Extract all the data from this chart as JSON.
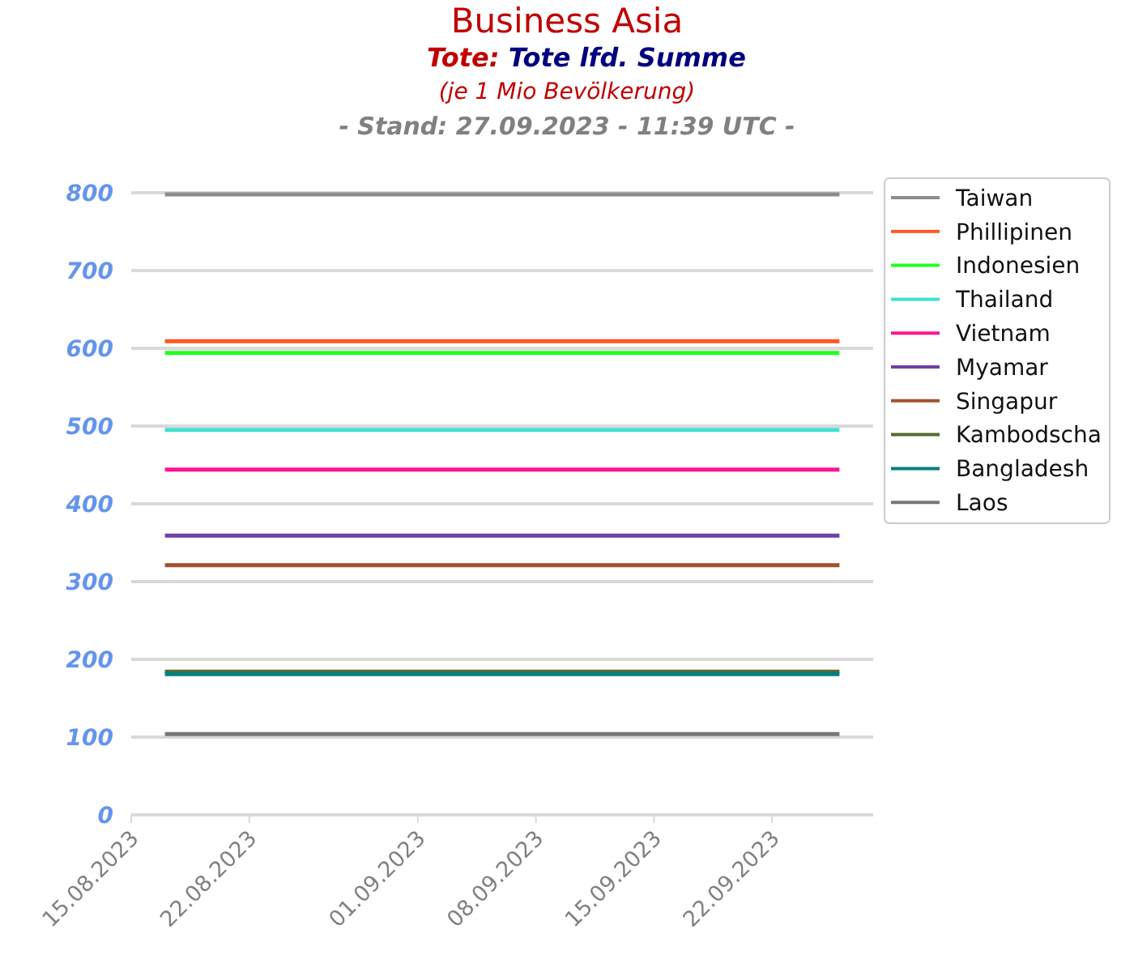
{
  "chart_data": {
    "type": "line",
    "title": "Business Asia",
    "subtitle": "Tote: Tote lfd. Summe",
    "annotations": [
      "(je 1 Mio Bevölkerung)",
      "- Stand: 27.09.2023 - 11:39 UTC -"
    ],
    "x": [
      "2023-08-17",
      "2023-09-26"
    ],
    "xlim": [
      "2023-08-15",
      "2023-09-28"
    ],
    "xticks": [
      {
        "value": "2023-08-15",
        "label": "15.08.2023"
      },
      {
        "value": "2023-08-22",
        "label": "22.08.2023"
      },
      {
        "value": "2023-09-01",
        "label": "01.09.2023"
      },
      {
        "value": "2023-09-08",
        "label": "08.09.2023"
      },
      {
        "value": "2023-09-15",
        "label": "15.09.2023"
      },
      {
        "value": "2023-09-22",
        "label": "22.09.2023"
      }
    ],
    "ylim": [
      0,
      800
    ],
    "yticks": [
      0,
      100,
      200,
      300,
      400,
      500,
      600,
      700,
      800
    ],
    "grid": "y",
    "legend": "top right",
    "marker": "none",
    "line_style": "solid",
    "series": [
      {
        "name": "Taiwan",
        "color": "#8c8c8c",
        "values": [
          798,
          798
        ]
      },
      {
        "name": "Phillipinen",
        "color": "#ff5722",
        "values": [
          609,
          609
        ]
      },
      {
        "name": "Indonesien",
        "color": "#22ff22",
        "values": [
          594,
          594
        ]
      },
      {
        "name": "Thailand",
        "color": "#40e0d0",
        "values": [
          495,
          495
        ]
      },
      {
        "name": "Vietnam",
        "color": "#ff1493",
        "values": [
          444,
          444
        ]
      },
      {
        "name": "Myamar",
        "color": "#7040a8",
        "values": [
          359,
          359
        ]
      },
      {
        "name": "Singapur",
        "color": "#a0522d",
        "values": [
          321,
          321
        ]
      },
      {
        "name": "Kambodscha",
        "color": "#556b2f",
        "values": [
          184,
          184
        ]
      },
      {
        "name": "Bangladesh",
        "color": "#008080",
        "values": [
          181,
          181
        ]
      },
      {
        "name": "Laos",
        "color": "#777777",
        "values": [
          104,
          104
        ]
      }
    ]
  }
}
